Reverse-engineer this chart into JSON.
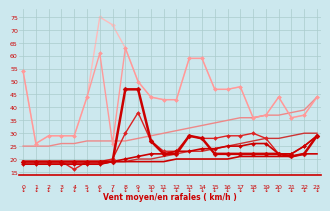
{
  "bg_color": "#cce8ee",
  "grid_color": "#aacccc",
  "xlabel": "Vent moyen/en rafales ( km/h )",
  "ylabel_ticks": [
    15,
    20,
    25,
    30,
    35,
    40,
    45,
    50,
    55,
    60,
    65,
    70,
    75
  ],
  "x_ticks": [
    0,
    1,
    2,
    3,
    4,
    5,
    6,
    7,
    8,
    9,
    10,
    11,
    12,
    13,
    14,
    15,
    16,
    17,
    18,
    19,
    20,
    21,
    22,
    23
  ],
  "xlim": [
    -0.3,
    23.3
  ],
  "ylim": [
    14,
    78
  ],
  "lines": [
    {
      "comment": "nearly flat dark red line at ~19-20, no markers",
      "x": [
        0,
        1,
        2,
        3,
        4,
        5,
        6,
        7,
        8,
        9,
        10,
        11,
        12,
        13,
        14,
        15,
        16,
        17,
        18,
        19,
        20,
        21,
        22,
        23
      ],
      "y": [
        18,
        18,
        18,
        18,
        18,
        18,
        18,
        19,
        19,
        19,
        19,
        19,
        20,
        20,
        20,
        20,
        20,
        21,
        21,
        21,
        21,
        21,
        22,
        22
      ],
      "color": "#cc0000",
      "lw": 1.2,
      "marker": null,
      "zorder": 5
    },
    {
      "comment": "dark red with diamonds, slightly rising ~19-29",
      "x": [
        0,
        1,
        2,
        3,
        4,
        5,
        6,
        7,
        8,
        9,
        10,
        11,
        12,
        13,
        14,
        15,
        16,
        17,
        18,
        19,
        20,
        21,
        22,
        23
      ],
      "y": [
        18,
        18,
        18,
        18,
        18,
        18,
        18,
        19,
        20,
        21,
        22,
        22,
        23,
        23,
        24,
        24,
        25,
        25,
        26,
        26,
        22,
        22,
        25,
        29
      ],
      "color": "#cc0000",
      "lw": 1.2,
      "marker": "D",
      "ms": 2.0,
      "zorder": 5
    },
    {
      "comment": "medium red with diamonds, rises to ~30 at x=8, then varies",
      "x": [
        0,
        1,
        2,
        3,
        4,
        5,
        6,
        7,
        8,
        9,
        10,
        11,
        12,
        13,
        14,
        15,
        16,
        17,
        18,
        19,
        20,
        21,
        22,
        23
      ],
      "y": [
        19,
        19,
        19,
        19,
        16,
        19,
        19,
        20,
        30,
        38,
        27,
        23,
        23,
        29,
        28,
        28,
        29,
        29,
        30,
        28,
        22,
        22,
        25,
        29
      ],
      "color": "#dd2222",
      "lw": 1.0,
      "marker": "D",
      "ms": 2.0,
      "zorder": 4
    },
    {
      "comment": "bright red dashed-like with diamonds, peaks at x=8 ~47, horizontal segment at ~47",
      "x": [
        0,
        1,
        2,
        3,
        4,
        5,
        6,
        7,
        8,
        9,
        10,
        11,
        12,
        13,
        14,
        15,
        16,
        17,
        18,
        19,
        20,
        21,
        22,
        23
      ],
      "y": [
        19,
        19,
        19,
        19,
        19,
        19,
        19,
        19,
        47,
        47,
        27,
        22,
        22,
        29,
        28,
        22,
        22,
        22,
        22,
        22,
        22,
        21,
        22,
        29
      ],
      "color": "#cc0000",
      "lw": 1.8,
      "marker": "D",
      "ms": 2.5,
      "zorder": 6
    },
    {
      "comment": "slightly lighter red line gently rising, no markers",
      "x": [
        0,
        1,
        2,
        3,
        4,
        5,
        6,
        7,
        8,
        9,
        10,
        11,
        12,
        13,
        14,
        15,
        16,
        17,
        18,
        19,
        20,
        21,
        22,
        23
      ],
      "y": [
        19,
        19,
        19,
        19,
        19,
        19,
        19,
        19,
        19,
        20,
        20,
        21,
        22,
        23,
        23,
        24,
        25,
        26,
        27,
        28,
        28,
        29,
        30,
        30
      ],
      "color": "#cc3333",
      "lw": 1.0,
      "marker": null,
      "zorder": 3
    },
    {
      "comment": "light pink line gently rising ~25 to ~44, no markers",
      "x": [
        0,
        1,
        2,
        3,
        4,
        5,
        6,
        7,
        8,
        9,
        10,
        11,
        12,
        13,
        14,
        15,
        16,
        17,
        18,
        19,
        20,
        21,
        22,
        23
      ],
      "y": [
        25,
        25,
        25,
        26,
        26,
        27,
        27,
        27,
        27,
        28,
        29,
        30,
        31,
        32,
        33,
        34,
        35,
        36,
        36,
        37,
        37,
        38,
        39,
        44
      ],
      "color": "#ee8888",
      "lw": 1.0,
      "marker": null,
      "zorder": 2
    },
    {
      "comment": "light pink with diamonds, big variation, peaks around x=6-8",
      "x": [
        0,
        1,
        2,
        3,
        4,
        5,
        6,
        7,
        8,
        9,
        10,
        11,
        12,
        13,
        14,
        15,
        16,
        17,
        18,
        19,
        20,
        21,
        22,
        23
      ],
      "y": [
        54,
        26,
        29,
        29,
        29,
        44,
        61,
        26,
        63,
        50,
        44,
        43,
        43,
        59,
        59,
        47,
        47,
        48,
        36,
        37,
        44,
        36,
        37,
        44
      ],
      "color": "#ff9999",
      "lw": 1.0,
      "marker": "D",
      "ms": 2.0,
      "zorder": 2
    },
    {
      "comment": "lightest pink with diamonds, peaks at x=6 ~75 and x=7 ~72",
      "x": [
        0,
        1,
        2,
        3,
        4,
        5,
        6,
        7,
        8,
        9,
        10,
        11,
        12,
        13,
        14,
        15,
        16,
        17,
        18,
        19,
        20,
        21,
        22,
        23
      ],
      "y": [
        54,
        26,
        29,
        29,
        29,
        44,
        75,
        72,
        63,
        50,
        44,
        43,
        43,
        59,
        59,
        47,
        47,
        48,
        36,
        37,
        44,
        36,
        37,
        44
      ],
      "color": "#ffbbbb",
      "lw": 1.0,
      "marker": "D",
      "ms": 2.0,
      "zorder": 1
    }
  ],
  "arrow_color": "#cc0000",
  "title_color": "#cc0000"
}
